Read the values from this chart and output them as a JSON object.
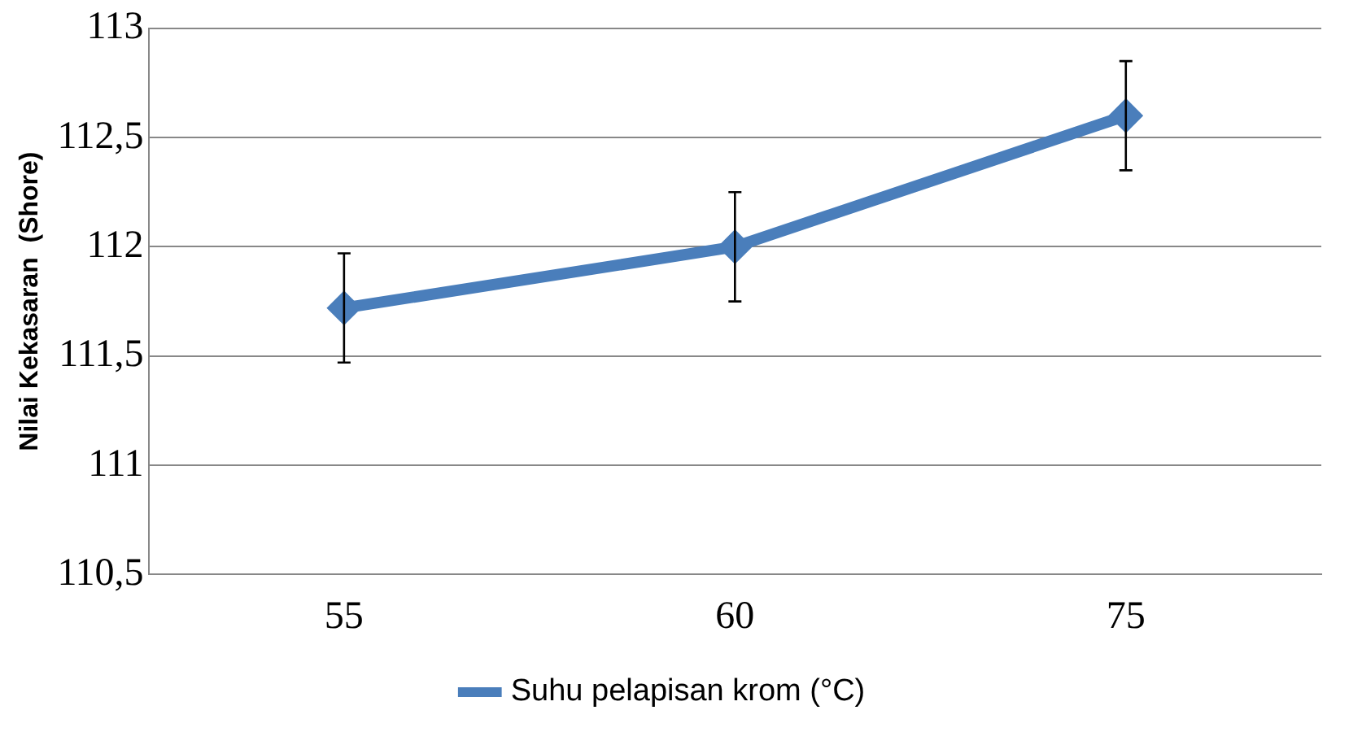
{
  "chart_data": {
    "type": "line",
    "ylabel": "Nilai Kekasaran  (Shore)",
    "categories": [
      "55",
      "60",
      "75"
    ],
    "series": [
      {
        "name": "Suhu pelapisan krom (°C)",
        "color": "#4a7ebb",
        "values": [
          111.72,
          112,
          112.6
        ],
        "errors": [
          0.25,
          0.25,
          0.25
        ]
      }
    ],
    "ylim": [
      110.5,
      113
    ],
    "yticks": [
      {
        "value": 110.5,
        "label": "110,5"
      },
      {
        "value": 111,
        "label": "111"
      },
      {
        "value": 111.5,
        "label": "111,5"
      },
      {
        "value": 112,
        "label": "112"
      },
      {
        "value": 112.5,
        "label": "112,5"
      },
      {
        "value": 113,
        "label": "113"
      }
    ],
    "grid": "y",
    "legend": "bottom",
    "marker": "diamond",
    "line_style": "solid"
  }
}
